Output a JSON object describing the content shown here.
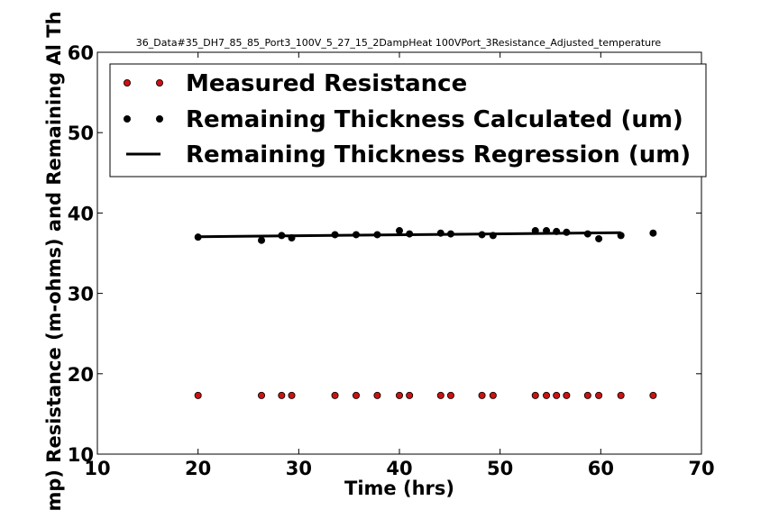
{
  "chart_data": {
    "type": "scatter",
    "title": "36_Data#35_DH7_85_85_Port3_100V_5_27_15_2DampHeat 100VPort_3Resistance_Adjusted_temperature",
    "xlabel": "Time (hrs)",
    "ylabel": "Resistance (m-ohms) and Remaining Al Thickness (um)",
    "ylabel_visible": "mp) Resistance (m-ohms) and Remaining Al Th",
    "xlim": [
      10,
      70
    ],
    "ylim": [
      10,
      60
    ],
    "xticks": [
      10,
      20,
      30,
      40,
      50,
      60,
      70
    ],
    "yticks": [
      10,
      20,
      30,
      40,
      50,
      60
    ],
    "grid": false,
    "legend_position": "top",
    "series": [
      {
        "name": "Measured Resistance",
        "kind": "scatter",
        "color": "#cc1111",
        "x": [
          20,
          26.3,
          28.3,
          29.3,
          33.6,
          35.7,
          37.8,
          40,
          41,
          44.1,
          45.1,
          48.2,
          49.3,
          53.5,
          54.6,
          55.6,
          56.6,
          58.7,
          59.8,
          62,
          65.2
        ],
        "y": [
          17.3,
          17.3,
          17.3,
          17.3,
          17.3,
          17.3,
          17.3,
          17.3,
          17.3,
          17.3,
          17.3,
          17.3,
          17.3,
          17.3,
          17.3,
          17.3,
          17.3,
          17.3,
          17.3,
          17.3,
          17.3
        ]
      },
      {
        "name": "Remaining Thickness Calculated (um)",
        "kind": "scatter",
        "color": "#000000",
        "x": [
          20,
          26.3,
          28.3,
          29.3,
          33.6,
          35.7,
          37.8,
          40,
          41,
          44.1,
          45.1,
          48.2,
          49.3,
          53.5,
          54.6,
          55.6,
          56.6,
          58.7,
          59.8,
          62,
          65.2
        ],
        "y": [
          37.0,
          36.6,
          37.2,
          36.9,
          37.3,
          37.3,
          37.3,
          37.8,
          37.4,
          37.5,
          37.4,
          37.3,
          37.2,
          37.8,
          37.8,
          37.7,
          37.6,
          37.4,
          36.8,
          37.2,
          37.5
        ]
      },
      {
        "name": "Remaining Thickness Regression (um)",
        "kind": "line",
        "color": "#000000",
        "x": [
          20,
          62
        ],
        "y": [
          37.05,
          37.55
        ]
      }
    ]
  }
}
